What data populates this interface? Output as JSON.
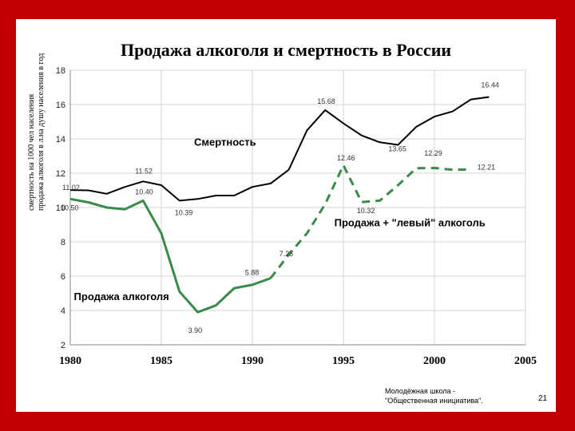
{
  "title": "Продажа алкоголя и смертность в России",
  "footer": {
    "line1": "Молодёжная школа -",
    "line2": "\"Общественная инициатива\".",
    "page": "21"
  },
  "colors": {
    "frame": "#c00000",
    "mortality": "#000000",
    "alcohol": "#3a8a4a"
  },
  "chart_data": {
    "type": "line",
    "title": "Продажа алкоголя и смертность в России",
    "ylabel_lines": [
      "смертность на 1000 чел населения",
      "продажа алкоголя в л.на душу населения в год"
    ],
    "ylim": [
      2,
      18
    ],
    "yticks": [
      "2",
      "4",
      "6",
      "8",
      "10",
      "12",
      "14",
      "16",
      "18"
    ],
    "xlim": [
      1980,
      2005
    ],
    "xticks": [
      "1980",
      "1985",
      "1990",
      "1995",
      "2000",
      "2005"
    ],
    "grid": true,
    "series": [
      {
        "name": "Смертность",
        "style": "solid",
        "points": [
          [
            1980,
            11.02
          ],
          [
            1981,
            11.0
          ],
          [
            1982,
            10.8
          ],
          [
            1983,
            11.2
          ],
          [
            1984,
            11.52
          ],
          [
            1985,
            11.3
          ],
          [
            1986,
            10.4
          ],
          [
            1987,
            10.5
          ],
          [
            1988,
            10.7
          ],
          [
            1989,
            10.7
          ],
          [
            1990,
            11.2
          ],
          [
            1991,
            11.4
          ],
          [
            1992,
            12.2
          ],
          [
            1993,
            14.5
          ],
          [
            1994,
            15.68
          ],
          [
            1995,
            14.9
          ],
          [
            1996,
            14.2
          ],
          [
            1997,
            13.8
          ],
          [
            1998,
            13.65
          ],
          [
            1999,
            14.7
          ],
          [
            2000,
            15.3
          ],
          [
            2001,
            15.6
          ],
          [
            2002,
            16.3
          ],
          [
            2003,
            16.44
          ]
        ]
      },
      {
        "name": "Продажа алкоголя",
        "style": "solid",
        "points": [
          [
            1980,
            10.5
          ],
          [
            1981,
            10.3
          ],
          [
            1982,
            10.0
          ],
          [
            1983,
            9.9
          ],
          [
            1984,
            10.4
          ],
          [
            1985,
            8.5
          ],
          [
            1986,
            5.1
          ],
          [
            1987,
            3.9
          ],
          [
            1988,
            4.3
          ],
          [
            1989,
            5.3
          ],
          [
            1990,
            5.5
          ],
          [
            1991,
            5.88
          ]
        ]
      },
      {
        "name": "Продажа + \"левый\" алкоголь",
        "style": "dashed",
        "points": [
          [
            1991,
            5.88
          ],
          [
            1992,
            7.25
          ],
          [
            1993,
            8.5
          ],
          [
            1994,
            10.2
          ],
          [
            1995,
            12.46
          ],
          [
            1996,
            10.32
          ],
          [
            1997,
            10.4
          ],
          [
            1998,
            11.3
          ],
          [
            1999,
            12.29
          ],
          [
            2000,
            12.3
          ],
          [
            2001,
            12.2
          ],
          [
            2002,
            12.21
          ]
        ]
      }
    ],
    "data_labels": [
      {
        "text": "11.02",
        "x": 1980,
        "y": 11.02,
        "dx": -10,
        "dy": 0
      },
      {
        "text": "11.52",
        "x": 1984,
        "y": 11.52,
        "dx": -10,
        "dy": -10
      },
      {
        "text": "10.40",
        "x": 1984,
        "y": 10.4,
        "dx": -10,
        "dy": -8
      },
      {
        "text": "10.50",
        "x": 1980,
        "y": 10.5,
        "dx": -12,
        "dy": 14
      },
      {
        "text": "10.39",
        "x": 1986,
        "y": 10.4,
        "dx": -6,
        "dy": 18
      },
      {
        "text": "15.68",
        "x": 1994,
        "y": 15.68,
        "dx": -10,
        "dy": -8
      },
      {
        "text": "16.44",
        "x": 2003,
        "y": 16.44,
        "dx": -10,
        "dy": -12
      },
      {
        "text": "12.46",
        "x": 1995,
        "y": 12.46,
        "dx": -8,
        "dy": -6
      },
      {
        "text": "13.65",
        "x": 1998,
        "y": 13.65,
        "dx": -12,
        "dy": 8
      },
      {
        "text": "12.29",
        "x": 1999,
        "y": 12.29,
        "dx": 10,
        "dy": -16
      },
      {
        "text": "12.21",
        "x": 2002,
        "y": 12.21,
        "dx": 8,
        "dy": 0
      },
      {
        "text": "10.32",
        "x": 1996,
        "y": 10.32,
        "dx": -6,
        "dy": 14
      },
      {
        "text": "5.88",
        "x": 1991,
        "y": 5.88,
        "dx": -32,
        "dy": -4
      },
      {
        "text": "7.25",
        "x": 1992,
        "y": 7.25,
        "dx": -12,
        "dy": 2
      },
      {
        "text": "3.90",
        "x": 1987,
        "y": 3.9,
        "dx": -12,
        "dy": 26
      }
    ],
    "annotations": [
      {
        "text": "Смертность",
        "x": 1986.8,
        "y": 13.6
      },
      {
        "text": "Продажа + \"левый\" алкоголь",
        "x": 1994.5,
        "y": 8.9
      },
      {
        "text": "Продажа алкоголя",
        "x": 1980.2,
        "y": 4.6
      }
    ]
  }
}
